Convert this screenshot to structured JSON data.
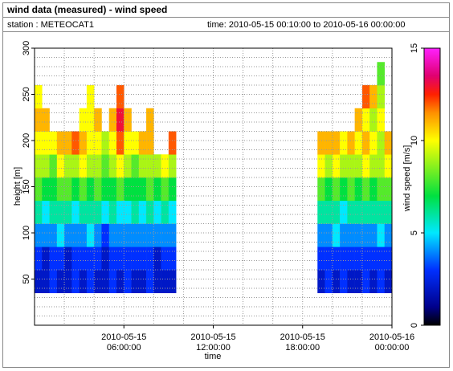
{
  "chart_data": {
    "type": "heatmap",
    "title": "wind data (measured) - wind speed",
    "station": "station : METEOCAT1",
    "time_range": "time: 2010-05-15 00:10:00 to 2010-05-16 00:00:00",
    "xlabel": "time",
    "ylabel": "height [m]",
    "colorbar_label": "wind speed [m/s]",
    "xlim": [
      "2010-05-15 00:00:00",
      "2010-05-16 00:00:00"
    ],
    "xticks": [
      "2010-05-15 06:00:00",
      "2010-05-15 12:00:00",
      "2010-05-15 18:00:00",
      "2010-05-16 00:00:00"
    ],
    "minor_xticks": [
      "2010-05-15 02:00:00",
      "2010-05-15 04:00:00",
      "2010-05-15 08:00:00",
      "2010-05-15 10:00:00",
      "2010-05-15 14:00:00",
      "2010-05-15 16:00:00",
      "2010-05-15 20:00:00",
      "2010-05-15 22:00:00"
    ],
    "ylim": [
      0,
      300
    ],
    "yticks": [
      50,
      100,
      150,
      200,
      250,
      300
    ],
    "minor_yticks": [
      10,
      20,
      30,
      40,
      60,
      70,
      80,
      90,
      110,
      120,
      130,
      140,
      160,
      170,
      180,
      190,
      210,
      220,
      230,
      240,
      260,
      270,
      280,
      290
    ],
    "clim": [
      0,
      15
    ],
    "cticks": [
      0,
      5,
      10,
      15
    ],
    "colormap": [
      {
        "value": 0,
        "color": "#000000"
      },
      {
        "value": 1,
        "color": "#00008c"
      },
      {
        "value": 3,
        "color": "#0030ff"
      },
      {
        "value": 5,
        "color": "#00e8ff"
      },
      {
        "value": 7,
        "color": "#00e040"
      },
      {
        "value": 10,
        "color": "#ffff00"
      },
      {
        "value": 11.5,
        "color": "#ff9000"
      },
      {
        "value": 12.5,
        "color": "#ff2000"
      },
      {
        "value": 13.5,
        "color": "#e00070"
      },
      {
        "value": 15,
        "color": "#ff20ff"
      }
    ],
    "x": [
      "2010-05-15 00:00:00",
      "2010-05-15 00:30:00",
      "2010-05-15 01:00:00",
      "2010-05-15 01:30:00",
      "2010-05-15 02:00:00",
      "2010-05-15 02:30:00",
      "2010-05-15 03:00:00",
      "2010-05-15 03:30:00",
      "2010-05-15 04:00:00",
      "2010-05-15 04:30:00",
      "2010-05-15 05:00:00",
      "2010-05-15 05:30:00",
      "2010-05-15 06:00:00",
      "2010-05-15 06:30:00",
      "2010-05-15 07:00:00",
      "2010-05-15 07:30:00",
      "2010-05-15 08:00:00",
      "2010-05-15 08:30:00",
      "2010-05-15 09:00:00",
      "2010-05-15 19:00:00",
      "2010-05-15 19:30:00",
      "2010-05-15 20:00:00",
      "2010-05-15 20:30:00",
      "2010-05-15 21:00:00",
      "2010-05-15 21:30:00",
      "2010-05-15 22:00:00",
      "2010-05-15 22:30:00",
      "2010-05-15 23:00:00",
      "2010-05-15 23:30:00"
    ],
    "y": [
      35,
      60,
      85,
      110,
      135,
      160,
      185,
      210,
      235,
      260
    ],
    "z": [
      [
        2,
        3,
        4,
        6,
        8,
        9,
        10,
        11,
        10,
        null
      ],
      [
        2,
        2,
        4,
        5,
        7,
        9,
        10,
        11,
        null,
        null
      ],
      [
        3,
        3,
        4,
        6,
        7,
        8,
        10,
        null,
        null,
        null
      ],
      [
        2,
        3,
        5,
        6,
        8,
        10,
        11,
        null,
        null,
        null
      ],
      [
        2,
        2,
        4,
        6,
        8,
        9,
        11,
        null,
        null,
        null
      ],
      [
        3,
        3,
        4,
        5,
        7,
        9,
        12,
        null,
        null,
        null
      ],
      [
        2,
        3,
        4,
        6,
        8,
        10,
        11,
        10,
        null,
        null
      ],
      [
        3,
        3,
        5,
        6,
        7,
        9,
        10,
        10,
        10,
        null
      ],
      [
        2,
        3,
        4,
        6,
        8,
        9,
        10,
        11,
        null,
        null
      ],
      [
        2,
        2,
        3,
        5,
        7,
        8,
        9,
        null,
        null,
        null
      ],
      [
        3,
        3,
        4,
        6,
        7,
        9,
        10,
        11,
        null,
        null
      ],
      [
        2,
        3,
        4,
        5,
        8,
        10,
        12,
        13,
        12,
        null
      ],
      [
        3,
        3,
        4,
        5,
        7,
        9,
        10,
        11,
        null,
        null
      ],
      [
        2,
        3,
        4,
        6,
        7,
        8,
        10,
        null,
        null,
        null
      ],
      [
        2,
        3,
        4,
        5,
        7,
        9,
        11,
        null,
        null,
        null
      ],
      [
        3,
        3,
        4,
        6,
        8,
        9,
        11,
        11,
        null,
        null
      ],
      [
        2,
        2,
        4,
        5,
        7,
        9,
        null,
        null,
        null,
        null
      ],
      [
        2,
        3,
        4,
        6,
        8,
        10,
        null,
        null,
        null,
        null
      ],
      [
        2,
        3,
        4,
        5,
        7,
        9,
        12,
        null,
        null,
        null
      ],
      [
        2,
        3,
        4,
        6,
        8,
        10,
        11,
        null,
        null,
        null
      ],
      [
        3,
        3,
        4,
        6,
        7,
        9,
        11,
        null,
        null,
        null
      ],
      [
        2,
        3,
        5,
        6,
        8,
        10,
        11,
        null,
        null,
        null
      ],
      [
        3,
        3,
        4,
        5,
        7,
        9,
        10,
        null,
        null,
        null
      ],
      [
        2,
        3,
        4,
        6,
        8,
        9,
        11,
        null,
        null,
        null
      ],
      [
        2,
        3,
        4,
        6,
        7,
        9,
        10,
        11,
        null,
        null
      ],
      [
        3,
        3,
        4,
        6,
        8,
        10,
        11,
        10,
        12,
        null
      ],
      [
        2,
        3,
        4,
        6,
        7,
        9,
        10,
        9,
        11,
        null
      ],
      [
        3,
        3,
        5,
        6,
        8,
        9,
        9,
        10,
        9,
        8
      ],
      [
        2,
        3,
        4,
        6,
        8,
        10,
        11,
        null,
        null,
        null
      ]
    ]
  }
}
